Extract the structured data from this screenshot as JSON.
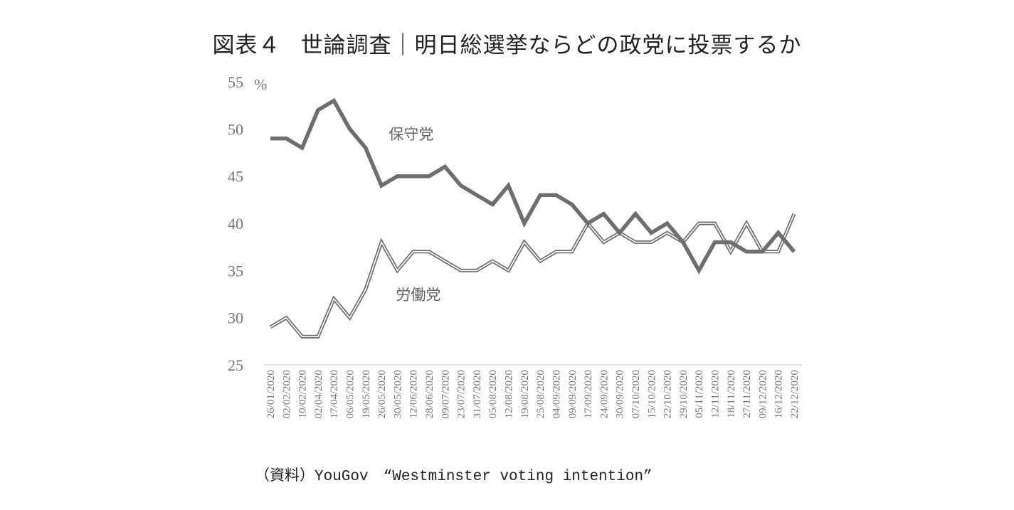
{
  "title": {
    "figure": "図表４",
    "text": "世論調査｜明日総選挙ならどの政党に投票するか"
  },
  "source": "（資料）YouGov　“Westminster voting intention”",
  "chart_data": {
    "type": "line",
    "title": "図表４　世論調査｜明日総選挙ならどの政党に投票するか",
    "xlabel": "",
    "ylabel": "%",
    "ylim": [
      25,
      55
    ],
    "yticks": [
      25,
      30,
      35,
      40,
      45,
      50,
      55
    ],
    "grid": false,
    "legend": "inline labels",
    "categories": [
      "26/01/2020",
      "02/02/2020",
      "10/02/2020",
      "02/04/2020",
      "17/04/2020",
      "06/05/2020",
      "19/05/2020",
      "26/05/2020",
      "30/05/2020",
      "12/06/2020",
      "28/06/2020",
      "09/07/2020",
      "23/07/2020",
      "31/07/2020",
      "05/08/2020",
      "12/08/2020",
      "19/08/2020",
      "25/08/2020",
      "04/09/2020",
      "09/09/2020",
      "17/09/2020",
      "24/09/2020",
      "30/09/2020",
      "07/10/2020",
      "15/10/2020",
      "22/10/2020",
      "29/10/2020",
      "05/11/2020",
      "12/11/2020",
      "18/11/2020",
      "27/11/2020",
      "09/12/2020",
      "16/12/2020",
      "22/12/2020"
    ],
    "series": [
      {
        "name": "保守党",
        "style": "thick solid",
        "color": "#6e6e6e",
        "values": [
          49,
          49,
          48,
          52,
          53,
          50,
          48,
          44,
          45,
          45,
          45,
          46,
          44,
          43,
          42,
          44,
          40,
          43,
          43,
          42,
          40,
          41,
          39,
          41,
          39,
          40,
          38,
          35,
          38,
          38,
          37,
          37,
          39,
          37
        ]
      },
      {
        "name": "労働党",
        "style": "double outline",
        "color": "#6e6e6e",
        "values": [
          29,
          30,
          28,
          28,
          32,
          30,
          33,
          38,
          35,
          37,
          37,
          36,
          35,
          35,
          36,
          35,
          38,
          36,
          37,
          37,
          40,
          38,
          39,
          38,
          38,
          39,
          38,
          40,
          40,
          37,
          40,
          37,
          37,
          41
        ]
      }
    ],
    "annotations": [
      {
        "text": "保守党",
        "x": "30/05/2020",
        "y": 49.5
      },
      {
        "text": "労働党",
        "x": "30/05/2020",
        "y": 32.5
      },
      {
        "text": "%",
        "position": "top-left unit"
      }
    ],
    "source": "（資料）YouGov “Westminster voting intention”"
  }
}
